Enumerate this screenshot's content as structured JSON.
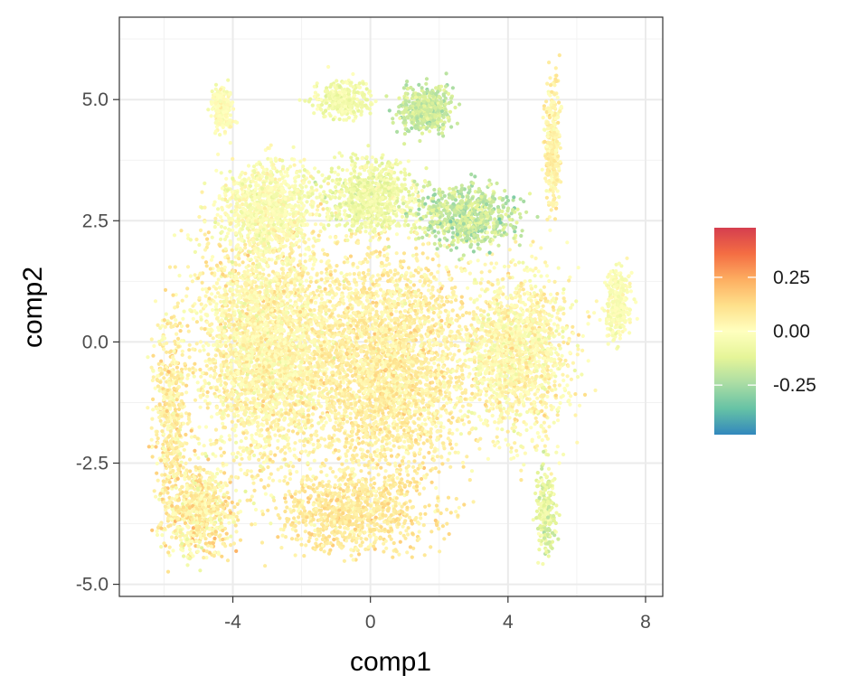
{
  "chart_data": {
    "type": "scatter",
    "title": "",
    "xlabel": "comp1",
    "ylabel": "comp2",
    "xlim": [
      -7.3,
      8.5
    ],
    "ylim": [
      -5.25,
      6.7
    ],
    "x_ticks": [
      {
        "value": -4,
        "label": "-4"
      },
      {
        "value": 0,
        "label": "0"
      },
      {
        "value": 4,
        "label": "4"
      },
      {
        "value": 8,
        "label": "8"
      }
    ],
    "y_ticks": [
      {
        "value": -5,
        "label": "-5.0"
      },
      {
        "value": -2.5,
        "label": "-2.5"
      },
      {
        "value": 0,
        "label": "0.0"
      },
      {
        "value": 2.5,
        "label": "2.5"
      },
      {
        "value": 5,
        "label": "5.0"
      }
    ],
    "grid": true,
    "theme": "bw",
    "color_scale": {
      "name": "Spectral (reversed)",
      "stops": [
        "#3288BD",
        "#66C2A5",
        "#ABDDA4",
        "#E6F598",
        "#FFFFBF",
        "#FEE08B",
        "#FDAE61",
        "#F46D43",
        "#D53E4F"
      ],
      "min": -0.48,
      "max": 0.48,
      "ticks": [
        {
          "value": 0.25,
          "label": "0.25"
        },
        {
          "value": 0.0,
          "label": "0.00"
        },
        {
          "value": -0.25,
          "label": "-0.25"
        }
      ],
      "legend_position": "right"
    },
    "regions": [
      {
        "name": "main-left",
        "x": -3.0,
        "y": 0.0,
        "sx": 2.0,
        "sy": 2.4,
        "n": 3200,
        "color_mean": 0.03,
        "color_sd": 0.09
      },
      {
        "name": "main-center",
        "x": 0.5,
        "y": -0.5,
        "sx": 2.2,
        "sy": 2.2,
        "n": 3000,
        "color_mean": 0.06,
        "color_sd": 0.08
      },
      {
        "name": "main-right",
        "x": 4.2,
        "y": -0.2,
        "sx": 1.5,
        "sy": 1.6,
        "n": 1600,
        "color_mean": 0.02,
        "color_sd": 0.09
      },
      {
        "name": "bottom-left",
        "x": -5.0,
        "y": -3.5,
        "sx": 1.0,
        "sy": 0.9,
        "n": 700,
        "color_mean": 0.05,
        "color_sd": 0.12
      },
      {
        "name": "bottom-center",
        "x": -0.5,
        "y": -3.5,
        "sx": 2.2,
        "sy": 0.8,
        "n": 900,
        "color_mean": 0.08,
        "color_sd": 0.07
      },
      {
        "name": "left-edge",
        "x": -5.8,
        "y": -1.5,
        "sx": 0.5,
        "sy": 2.0,
        "n": 500,
        "color_mean": 0.06,
        "color_sd": 0.1
      },
      {
        "name": "upper-left",
        "x": -3.0,
        "y": 2.8,
        "sx": 1.3,
        "sy": 0.9,
        "n": 900,
        "color_mean": -0.02,
        "color_sd": 0.07
      },
      {
        "name": "upper-center",
        "x": 0.0,
        "y": 3.0,
        "sx": 1.3,
        "sy": 0.7,
        "n": 800,
        "color_mean": -0.07,
        "color_sd": 0.08
      },
      {
        "name": "upper-right-band",
        "x": 2.8,
        "y": 2.6,
        "sx": 1.4,
        "sy": 0.6,
        "n": 700,
        "color_mean": -0.18,
        "color_sd": 0.1
      },
      {
        "name": "top-center",
        "x": 1.6,
        "y": 4.8,
        "sx": 0.7,
        "sy": 0.45,
        "n": 500,
        "color_mean": -0.17,
        "color_sd": 0.08
      },
      {
        "name": "top-left-center",
        "x": -0.8,
        "y": 5.0,
        "sx": 0.8,
        "sy": 0.35,
        "n": 300,
        "color_mean": -0.06,
        "color_sd": 0.06
      },
      {
        "name": "top-left-island",
        "x": -4.3,
        "y": 4.8,
        "sx": 0.3,
        "sy": 0.45,
        "n": 220,
        "color_mean": 0.0,
        "color_sd": 0.05
      },
      {
        "name": "right-tip",
        "x": 7.2,
        "y": 0.8,
        "sx": 0.35,
        "sy": 0.7,
        "n": 320,
        "color_mean": -0.02,
        "color_sd": 0.06
      },
      {
        "name": "right-column-top",
        "x": 5.3,
        "y": 4.0,
        "sx": 0.22,
        "sy": 1.3,
        "n": 320,
        "color_mean": 0.05,
        "color_sd": 0.07
      },
      {
        "name": "bottom-right-stalk",
        "x": 5.1,
        "y": -3.5,
        "sx": 0.25,
        "sy": 0.9,
        "n": 220,
        "color_mean": -0.1,
        "color_sd": 0.1
      }
    ]
  }
}
